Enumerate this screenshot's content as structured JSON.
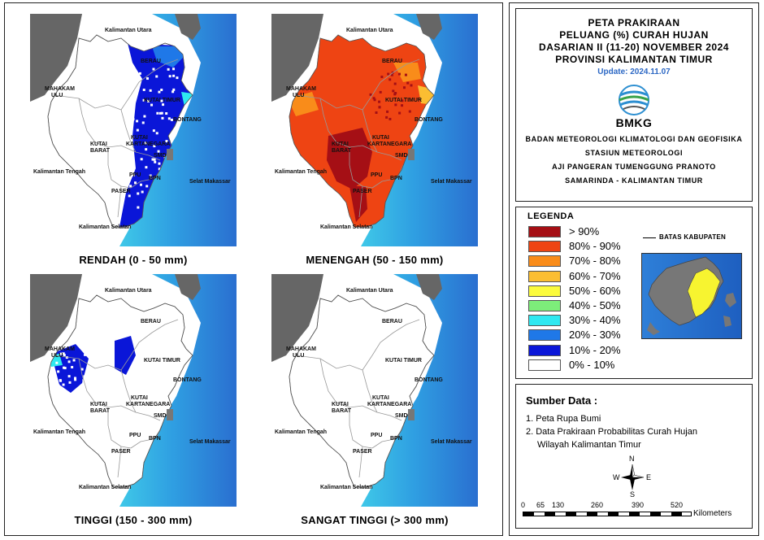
{
  "places": {
    "kaltara": "Kalimantan Utara",
    "berau": "BERAU",
    "mahakam": "MAHAKAM",
    "ulu": "ULU",
    "kutai_timur": "KUTAI TIMUR",
    "bontang": "BONTANG",
    "kutai": "KUTAI",
    "barat": "BARAT",
    "kartanegara": "KARTANEGARA",
    "smd": "SMD",
    "kalteng": "Kalimantan Tengah",
    "selat": "Selat Makassar",
    "paser": "PASER",
    "ppu": "PPU",
    "bpn": "BPN",
    "kalsel": "Kalimantan Selatan"
  },
  "maps": [
    {
      "caption": "RENDAH (0 - 50 mm)"
    },
    {
      "caption": "MENENGAH (50 - 150 mm)"
    },
    {
      "caption": "TINGGI (150 - 300 mm)"
    },
    {
      "caption": "SANGAT TINGGI (> 300 mm)"
    }
  ],
  "title": {
    "line1": "PETA PRAKIRAAN",
    "line2": "PELUANG (%) CURAH HUJAN",
    "line3": "DASARIAN II (11-20) NOVEMBER 2024",
    "line4": "PROVINSI KALIMANTAN TIMUR",
    "update": "Update: 2024.11.07",
    "logo_text": "BMKG",
    "agency1": "BADAN METEOROLOGI KLIMATOLOGI DAN GEOFISIKA",
    "agency2": "STASIUN METEOROLOGI",
    "agency3": "AJI PANGERAN TUMENGGUNG PRANOTO",
    "agency4": "SAMARINDA - KALIMANTAN TIMUR"
  },
  "legend": {
    "title": "LEGENDA",
    "boundary": "BATAS KABUPATEN",
    "items": [
      {
        "label": "> 90%",
        "color": "#a50f15"
      },
      {
        "label": "80% - 90%",
        "color": "#ee4413"
      },
      {
        "label": "70% - 80%",
        "color": "#f98c1a"
      },
      {
        "label": "60% - 70%",
        "color": "#fbbe32"
      },
      {
        "label": "50% - 60%",
        "color": "#fbfb3c"
      },
      {
        "label": "40% - 50%",
        "color": "#7ded7a"
      },
      {
        "label": "30% - 40%",
        "color": "#2ee8f0"
      },
      {
        "label": "20% - 30%",
        "color": "#1f78e8"
      },
      {
        "label": "10% - 20%",
        "color": "#0a16d8"
      },
      {
        "label": "0% - 10%",
        "color": "#ffffff"
      }
    ]
  },
  "source": {
    "title": "Sumber Data :",
    "item1": "1. Peta Rupa Bumi",
    "item2": "2. Data Prakiraan Probabilitas Curah Hujan",
    "item2b": "Wilayah Kalimantan Timur"
  },
  "compass": {
    "n": "N",
    "s": "S",
    "e": "E",
    "w": "W"
  },
  "scale": {
    "ticks": [
      "0",
      "65",
      "130",
      "260",
      "390",
      "520"
    ],
    "unit": "Kilometers"
  },
  "colors": {
    "sea_deep": "#2a6fd0",
    "sea_light": "#3fc8e8",
    "neighbor": "#666666",
    "boundary": "#999999"
  }
}
